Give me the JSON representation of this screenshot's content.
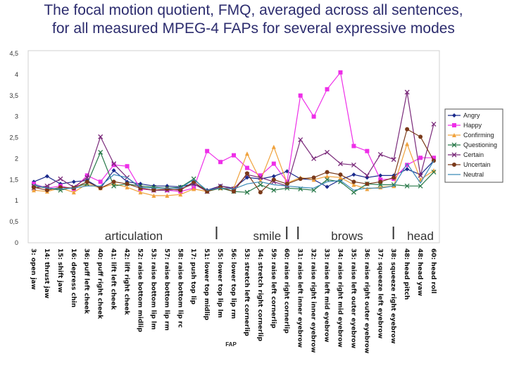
{
  "title": {
    "line1": "The focal motion quotient, FMQ, averaged across all sentences,",
    "line2": "for all measured MPEG-4 FAPs for several expressive modes"
  },
  "chart_data": {
    "type": "line",
    "title": "The focal motion quotient, FMQ, averaged across all sentences, for all measured MPEG-4 FAPs for several expressive modes",
    "xlabel": "FAP",
    "ylabel": "",
    "ylim": [
      0,
      4.5
    ],
    "yticks": [
      "0",
      "0,5",
      "1",
      "1,5",
      "2",
      "2,5",
      "3",
      "3,5",
      "4",
      "4,5"
    ],
    "grid": false,
    "legend_position": "right",
    "categories": [
      "3: open jaw",
      "14: thrust jaw",
      "15: shift jaw",
      "16: depress chin",
      "36: puff left cheek",
      "40: puff right cheek",
      "41: lift left cheek",
      "42: lift right cheek",
      "52: raise bottom midlip",
      "53: raise bottom lip lm",
      "57: raise bottom lip rm",
      "58: raise bottom lip rc",
      "17: push top lip",
      "51: lower top midlip",
      "55: lower top lip lm",
      "56: lower top lip rm",
      "53: stretch left cornerlip",
      "54: stretch right cornerlip",
      "59: raise left cornerlip",
      "60: raise right cornerlip",
      "31: raise left inner eyebrow",
      "32: raise right inner eyebrow",
      "33: raise left mid eyebrow",
      "34: raise right mid eyebrow",
      "35: raise left outer eyebrow",
      "36: raise right outer eyebrow",
      "37: squeeze left eyebrow",
      "38: squeeze right eyebrow",
      "48: head pitch",
      "48: head yaw",
      "60: head roll"
    ],
    "groups": [
      {
        "label": "articulation",
        "start": 0,
        "end": 15
      },
      {
        "label": "smile",
        "start": 16,
        "end": 19
      },
      {
        "label": "brows",
        "start": 20,
        "end": 27
      },
      {
        "label": "head",
        "start": 28,
        "end": 30
      }
    ],
    "series": [
      {
        "name": "Angry",
        "color": "#1a2a8c",
        "marker": "diamond",
        "values": [
          1.45,
          1.58,
          1.4,
          1.45,
          1.48,
          1.3,
          1.72,
          1.45,
          1.4,
          1.35,
          1.35,
          1.33,
          1.4,
          1.25,
          1.35,
          1.3,
          1.55,
          1.52,
          1.58,
          1.7,
          1.52,
          1.5,
          1.33,
          1.5,
          1.62,
          1.55,
          1.6,
          1.6,
          1.75,
          1.62,
          1.95
        ]
      },
      {
        "name": "Happy",
        "color": "#ee2ee8",
        "marker": "square",
        "values": [
          1.4,
          1.3,
          1.35,
          1.28,
          1.6,
          1.45,
          1.85,
          1.82,
          1.28,
          1.25,
          1.25,
          1.22,
          1.3,
          2.18,
          1.92,
          2.08,
          1.78,
          1.6,
          1.88,
          1.45,
          3.5,
          3.0,
          3.65,
          4.05,
          2.3,
          2.18,
          1.5,
          1.52,
          1.85,
          2.02,
          2.02
        ]
      },
      {
        "name": "Confirming",
        "color": "#f0a23c",
        "marker": "triangle",
        "values": [
          1.25,
          1.22,
          1.3,
          1.2,
          1.4,
          1.3,
          1.4,
          1.32,
          1.2,
          1.12,
          1.12,
          1.15,
          1.28,
          1.22,
          1.3,
          1.3,
          2.12,
          1.48,
          2.28,
          1.42,
          1.55,
          1.5,
          1.58,
          1.55,
          1.38,
          1.28,
          1.32,
          1.35,
          2.35,
          1.5,
          1.72
        ]
      },
      {
        "name": "Questioning",
        "color": "#2a7a4a",
        "marker": "x",
        "values": [
          1.35,
          1.3,
          1.25,
          1.32,
          1.4,
          2.15,
          1.35,
          1.4,
          1.35,
          1.32,
          1.3,
          1.32,
          1.52,
          1.22,
          1.3,
          1.22,
          1.2,
          1.38,
          1.25,
          1.3,
          1.28,
          1.25,
          1.5,
          1.45,
          1.2,
          1.4,
          1.38,
          1.38,
          1.35,
          1.35,
          1.68
        ]
      },
      {
        "name": "Certain",
        "color": "#7a2a7a",
        "marker": "x",
        "values": [
          1.3,
          1.35,
          1.52,
          1.32,
          1.55,
          2.52,
          1.88,
          1.55,
          1.3,
          1.25,
          1.25,
          1.28,
          1.4,
          1.22,
          1.35,
          1.28,
          1.62,
          1.55,
          1.45,
          1.35,
          2.45,
          2.0,
          2.15,
          1.88,
          1.85,
          1.6,
          2.1,
          1.98,
          3.58,
          1.6,
          2.82
        ]
      },
      {
        "name": "Uncertain",
        "color": "#7a3a1a",
        "marker": "circle",
        "values": [
          1.32,
          1.25,
          1.32,
          1.3,
          1.45,
          1.3,
          1.45,
          1.4,
          1.3,
          1.25,
          1.28,
          1.25,
          1.45,
          1.22,
          1.32,
          1.22,
          1.65,
          1.2,
          1.5,
          1.4,
          1.52,
          1.55,
          1.68,
          1.62,
          1.45,
          1.4,
          1.45,
          1.55,
          2.7,
          2.52,
          1.95
        ]
      },
      {
        "name": "Neutral",
        "color": "#3a8ab8",
        "marker": "none",
        "values": [
          1.38,
          1.3,
          1.28,
          1.3,
          1.35,
          1.35,
          1.62,
          1.55,
          1.32,
          1.3,
          1.3,
          1.3,
          1.5,
          1.25,
          1.3,
          1.28,
          1.4,
          1.45,
          1.38,
          1.35,
          1.32,
          1.3,
          1.45,
          1.48,
          1.25,
          1.3,
          1.3,
          1.35,
          1.88,
          1.42,
          1.95
        ]
      }
    ]
  }
}
